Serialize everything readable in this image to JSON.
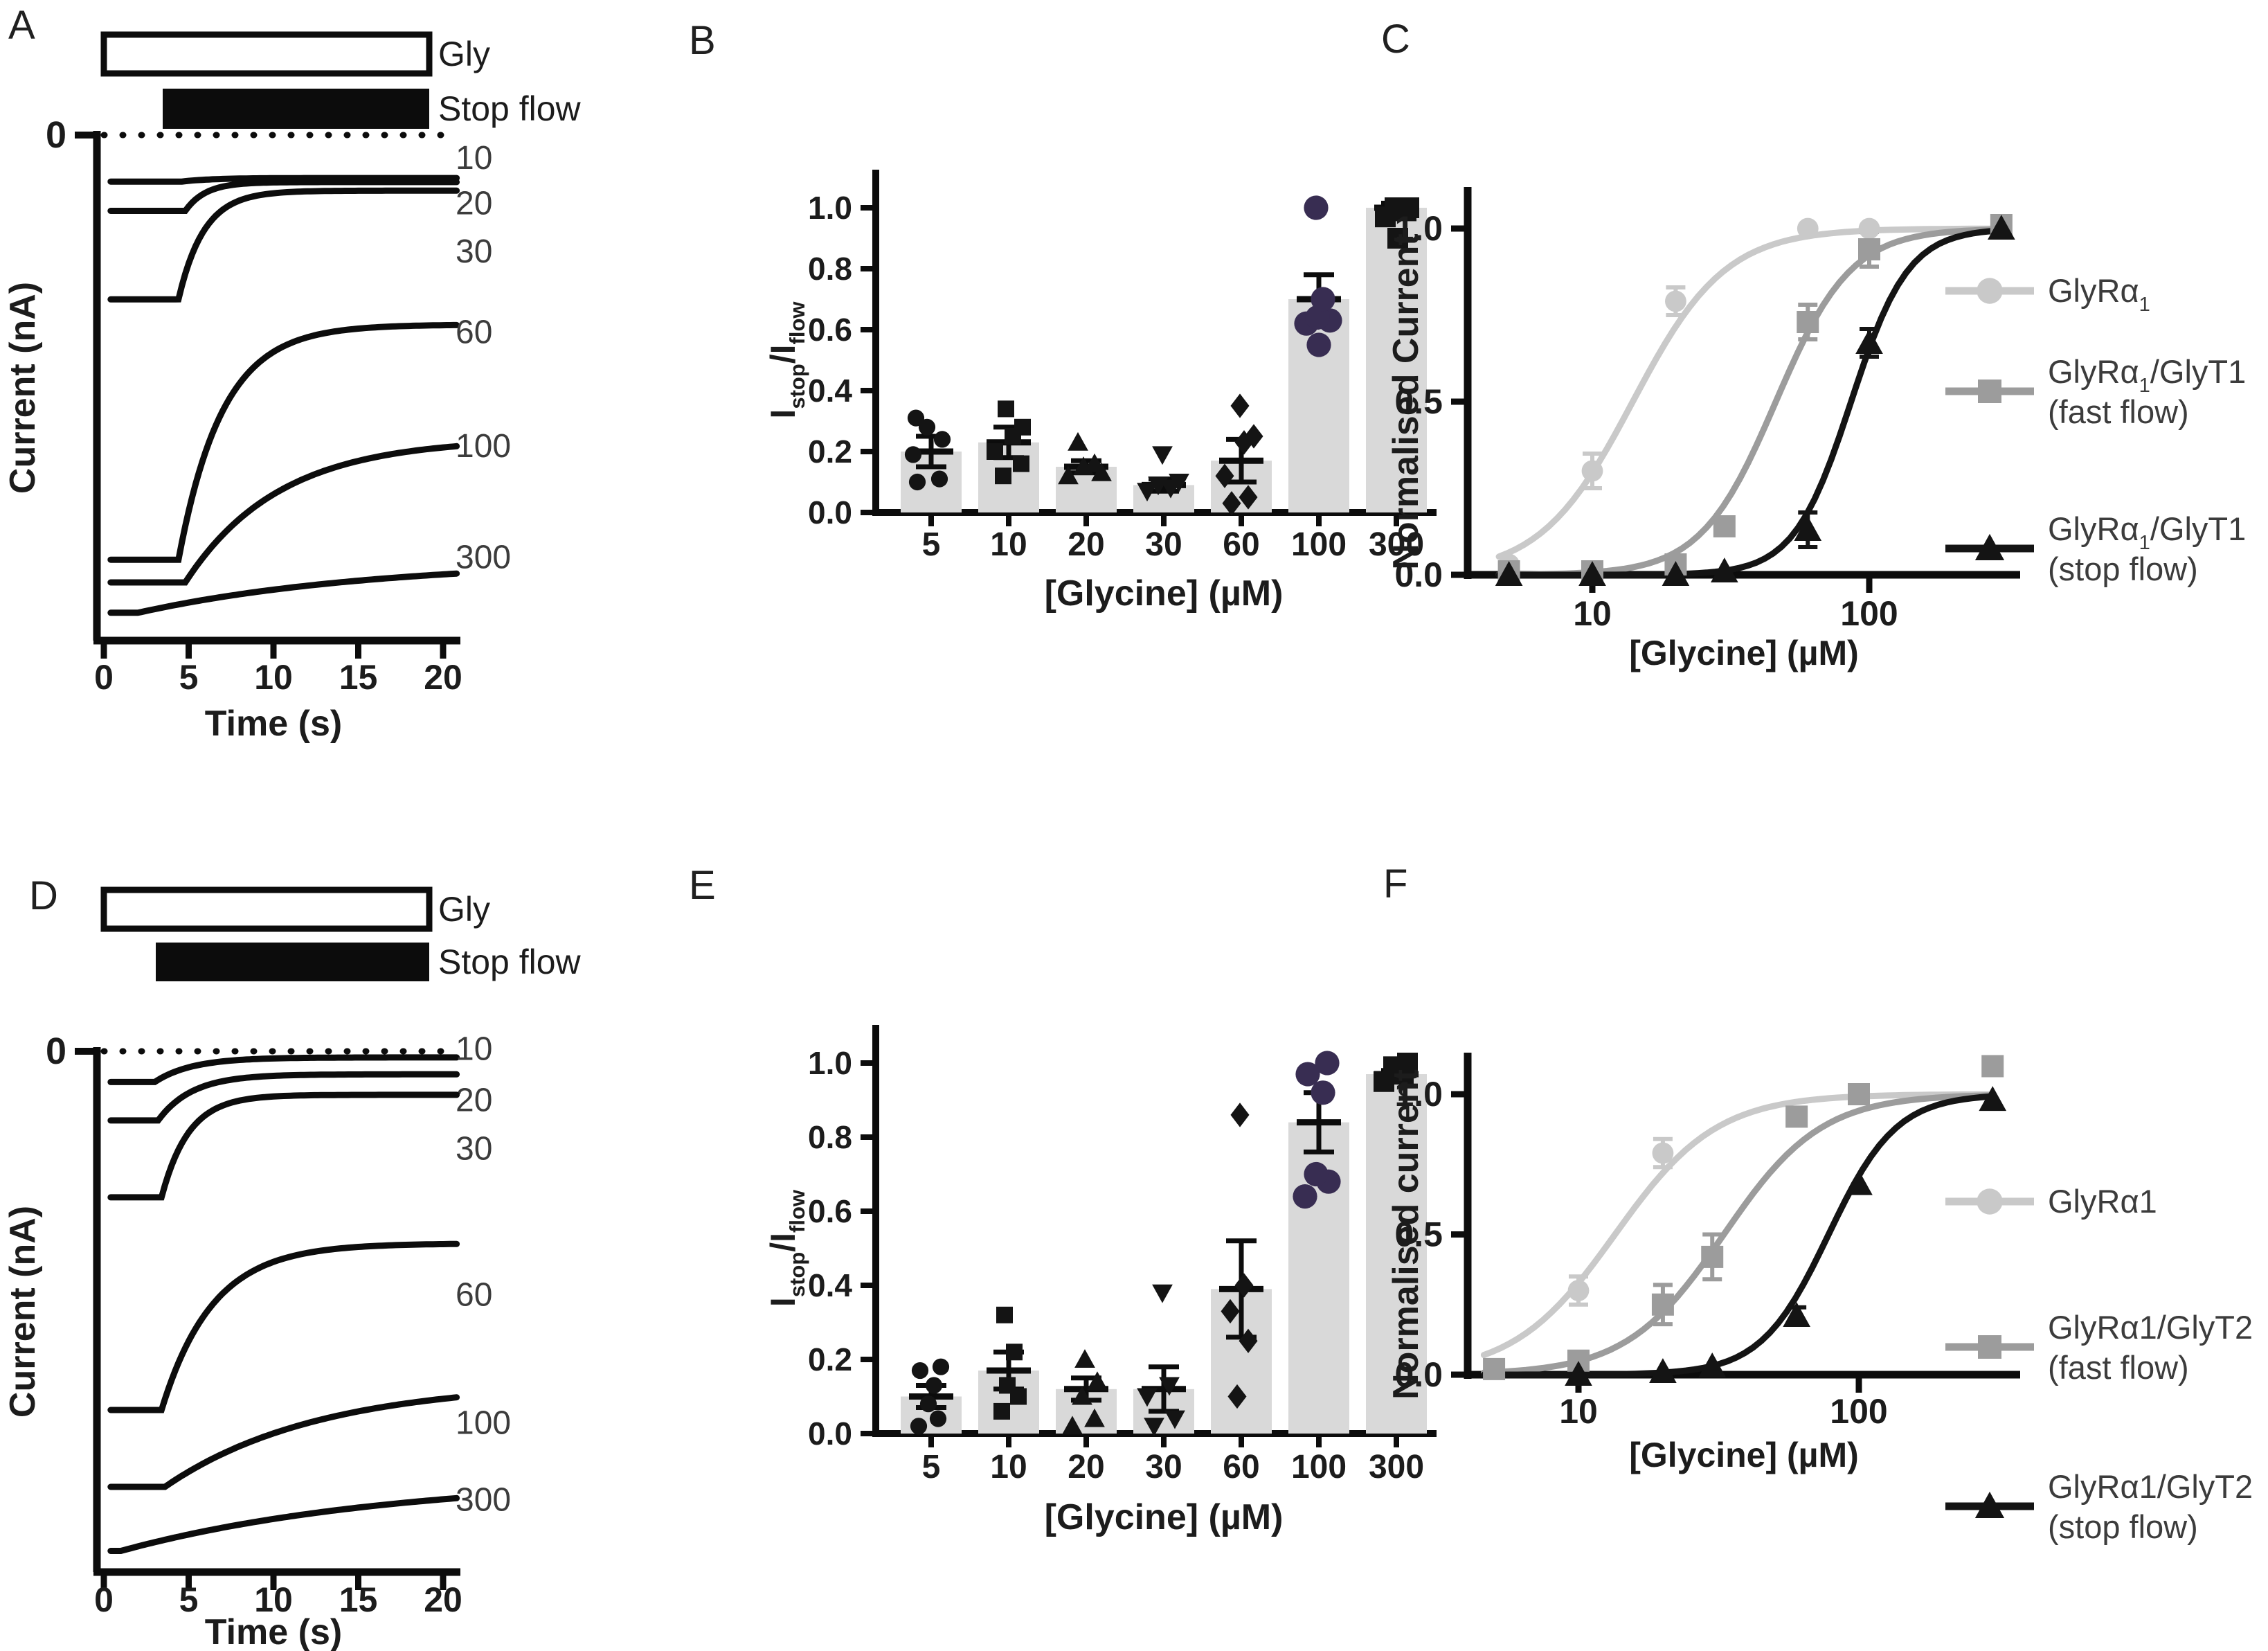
{
  "colors": {
    "ink": "#0c0c0c",
    "text": "#1c1c1c",
    "label_gray": "#3c3c3c",
    "bar_fill": "#d9d9d9",
    "marker_dark": "#141414",
    "marker_purple": "#382d52",
    "series_light": "#c9c9c9",
    "series_mid": "#9c9c9c",
    "series_dark": "#141414"
  },
  "chart_data": [
    {
      "panel_label": "A",
      "type": "line",
      "subtype": "current-traces",
      "stim_bars": [
        {
          "label": "Gly",
          "style": "open"
        },
        {
          "label": "Stop flow",
          "style": "filled"
        }
      ],
      "zero_tick_label": "0",
      "ylabel": "Current (nA)",
      "xlabel": "Time (s)",
      "x_ticks": [
        0,
        5,
        10,
        15,
        20
      ],
      "xlim": [
        0,
        21
      ],
      "trace_conc_unit": "µM glycine",
      "traces": [
        {
          "conc": "10",
          "base": 0.092,
          "final": 0.085,
          "t0": 4.6,
          "tau": 1.8,
          "label_f": 0.045
        },
        {
          "conc": "20",
          "base": 0.15,
          "final": 0.093,
          "t0": 4.8,
          "tau": 1.2,
          "label_f": 0.135
        },
        {
          "conc": "30",
          "base": 0.325,
          "final": 0.11,
          "t0": 4.4,
          "tau": 1.5,
          "label_f": 0.23
        },
        {
          "conc": "60",
          "base": 0.84,
          "final": 0.375,
          "t0": 4.4,
          "tau": 2.6,
          "label_f": 0.39
        },
        {
          "conc": "100",
          "base": 0.885,
          "final": 0.6,
          "t0": 4.8,
          "tau": 5.5,
          "label_f": 0.615
        },
        {
          "conc": "300",
          "base": 0.945,
          "final": 0.84,
          "t0": 2.0,
          "tau": 14.0,
          "label_f": 0.835
        }
      ]
    },
    {
      "panel_label": "B",
      "type": "bar",
      "ylabel_parts": [
        {
          "t": "I"
        },
        {
          "t": "stop",
          "sub": true
        },
        {
          "t": "/I"
        },
        {
          "t": "flow",
          "sub": true
        }
      ],
      "xlabel": "[Glycine] (µM)",
      "y_ticks": [
        "0.0",
        "0.2",
        "0.4",
        "0.6",
        "0.8",
        "1.0"
      ],
      "ylim": [
        0,
        1.1
      ],
      "categories": [
        "5",
        "10",
        "20",
        "30",
        "60",
        "100",
        "300"
      ],
      "values": [
        0.2,
        0.23,
        0.15,
        0.09,
        0.17,
        0.7,
        1.0
      ],
      "errors": [
        0.05,
        0.05,
        0.02,
        0.02,
        0.07,
        0.08,
        0.015
      ],
      "scatter": [
        {
          "marker": "circle",
          "color": "#141414",
          "size": 22,
          "values": [
            0.1,
            0.11,
            0.19,
            0.24,
            0.28,
            0.31
          ],
          "dx": [
            -20,
            12,
            -26,
            16,
            -6,
            -22
          ]
        },
        {
          "marker": "square",
          "color": "#141414",
          "size": 24,
          "values": [
            0.12,
            0.16,
            0.2,
            0.25,
            0.28,
            0.34
          ],
          "dx": [
            -8,
            18,
            -20,
            6,
            20,
            -4
          ]
        },
        {
          "marker": "triangle",
          "color": "#141414",
          "size": 24,
          "values": [
            0.12,
            0.13,
            0.15,
            0.16,
            0.23
          ],
          "dx": [
            -26,
            22,
            -4,
            12,
            -12
          ]
        },
        {
          "marker": "triangle-down",
          "color": "#141414",
          "size": 24,
          "values": [
            0.07,
            0.08,
            0.09,
            0.1,
            0.19
          ],
          "dx": [
            -24,
            10,
            -8,
            22,
            -2
          ]
        },
        {
          "marker": "diamond",
          "color": "#141414",
          "size": 26,
          "values": [
            0.03,
            0.05,
            0.12,
            0.23,
            0.25,
            0.35
          ],
          "dx": [
            -14,
            10,
            -24,
            4,
            18,
            -2
          ]
        },
        {
          "marker": "circle",
          "color": "#382d52",
          "size": 32,
          "values": [
            0.55,
            0.62,
            0.63,
            0.64,
            0.7,
            1.0
          ],
          "dx": [
            0,
            -18,
            16,
            -2,
            6,
            -4
          ]
        },
        {
          "marker": "square",
          "color": "#141414",
          "size": 30,
          "values": [
            0.9,
            0.97,
            0.99,
            1.0,
            1.0
          ],
          "dx": [
            2,
            -16,
            14,
            -2,
            18
          ]
        }
      ]
    },
    {
      "panel_label": "C",
      "type": "line",
      "subtype": "dose-response",
      "xscale": "log",
      "ylabel": "Normalised Current",
      "xlabel": "[Glycine] (µM)",
      "y_ticks": [
        "0.0",
        "0.5",
        "1.0"
      ],
      "x_ticks": [
        "10",
        "100"
      ],
      "series": [
        {
          "name_parts": [
            {
              "t": "GlyRα"
            },
            {
              "t": "1",
              "sub": true
            }
          ],
          "name_line2": "",
          "color": "#c9c9c9",
          "marker": "circle",
          "ec50": 14,
          "hill": 2.6,
          "top": 1.0,
          "points": [
            {
              "x": 5,
              "y": 0.03
            },
            {
              "x": 10,
              "y": 0.3,
              "err": 0.05
            },
            {
              "x": 20,
              "y": 0.79,
              "err": 0.04
            },
            {
              "x": 60,
              "y": 1.0
            },
            {
              "x": 100,
              "y": 1.0
            }
          ]
        },
        {
          "name_parts": [
            {
              "t": "GlyRα"
            },
            {
              "t": "1",
              "sub": true
            },
            {
              "t": "/GlyT1"
            }
          ],
          "name_line2": "(fast flow)",
          "color": "#9c9c9c",
          "marker": "square",
          "ec50": 46,
          "hill": 3.2,
          "top": 1.0,
          "points": [
            {
              "x": 5,
              "y": 0.01
            },
            {
              "x": 10,
              "y": 0.01
            },
            {
              "x": 20,
              "y": 0.03
            },
            {
              "x": 30,
              "y": 0.14
            },
            {
              "x": 60,
              "y": 0.73,
              "err": 0.05
            },
            {
              "x": 100,
              "y": 0.94,
              "err": 0.05
            },
            {
              "x": 300,
              "y": 1.01
            }
          ]
        },
        {
          "name_parts": [
            {
              "t": "GlyRα"
            },
            {
              "t": "1",
              "sub": true
            },
            {
              "t": "/GlyT1"
            }
          ],
          "name_line2": "(stop flow)",
          "color": "#141414",
          "marker": "triangle",
          "ec50": 86,
          "hill": 4.2,
          "top": 1.0,
          "points": [
            {
              "x": 5,
              "y": 0.0
            },
            {
              "x": 10,
              "y": 0.0
            },
            {
              "x": 20,
              "y": 0.0
            },
            {
              "x": 30,
              "y": 0.01
            },
            {
              "x": 60,
              "y": 0.13,
              "err": 0.05
            },
            {
              "x": 100,
              "y": 0.67,
              "err": 0.04
            },
            {
              "x": 300,
              "y": 1.0
            }
          ]
        }
      ]
    },
    {
      "panel_label": "D",
      "type": "line",
      "subtype": "current-traces",
      "stim_bars": [
        {
          "label": "Gly",
          "style": "open"
        },
        {
          "label": "Stop flow",
          "style": "filled"
        }
      ],
      "zero_tick_label": "0",
      "ylabel": "Current (nA)",
      "xlabel": "Time (s)",
      "x_ticks": [
        0,
        5,
        10,
        15,
        20
      ],
      "xlim": [
        0,
        21
      ],
      "trace_conc_unit": "µM glycine",
      "traces": [
        {
          "conc": "10",
          "base": 0.06,
          "final": 0.012,
          "t0": 3.0,
          "tau": 2.2,
          "label_f": -0.005
        },
        {
          "conc": "20",
          "base": 0.135,
          "final": 0.045,
          "t0": 3.2,
          "tau": 2.0,
          "label_f": 0.095
        },
        {
          "conc": "30",
          "base": 0.285,
          "final": 0.085,
          "t0": 3.4,
          "tau": 1.6,
          "label_f": 0.19
        },
        {
          "conc": "60",
          "base": 0.7,
          "final": 0.375,
          "t0": 3.4,
          "tau": 3.0,
          "label_f": 0.475
        },
        {
          "conc": "100",
          "base": 0.85,
          "final": 0.645,
          "t0": 3.6,
          "tau": 9.0,
          "label_f": 0.725
        },
        {
          "conc": "300",
          "base": 0.975,
          "final": 0.83,
          "t0": 1.0,
          "tau": 16.0,
          "label_f": 0.875
        }
      ]
    },
    {
      "panel_label": "E",
      "type": "bar",
      "ylabel_parts": [
        {
          "t": "I"
        },
        {
          "t": "stop",
          "sub": true
        },
        {
          "t": "/I"
        },
        {
          "t": "flow",
          "sub": true
        }
      ],
      "xlabel": "[Glycine] (µM)",
      "y_ticks": [
        "0.0",
        "0.2",
        "0.4",
        "0.6",
        "0.8",
        "1.0"
      ],
      "ylim": [
        0,
        1.1
      ],
      "categories": [
        "5",
        "10",
        "20",
        "30",
        "60",
        "100",
        "300"
      ],
      "values": [
        0.1,
        0.17,
        0.12,
        0.12,
        0.39,
        0.84,
        0.97
      ],
      "errors": [
        0.03,
        0.05,
        0.03,
        0.06,
        0.13,
        0.08,
        0.01
      ],
      "scatter": [
        {
          "marker": "circle",
          "color": "#141414",
          "size": 22,
          "values": [
            0.02,
            0.04,
            0.08,
            0.13,
            0.17,
            0.18
          ],
          "dx": [
            -18,
            10,
            -4,
            4,
            -16,
            14
          ]
        },
        {
          "marker": "square",
          "color": "#141414",
          "size": 24,
          "values": [
            0.06,
            0.1,
            0.13,
            0.22,
            0.32
          ],
          "dx": [
            -10,
            14,
            -2,
            8,
            -6
          ]
        },
        {
          "marker": "triangle",
          "color": "#141414",
          "size": 24,
          "values": [
            0.02,
            0.04,
            0.1,
            0.14,
            0.2
          ],
          "dx": [
            -20,
            12,
            -6,
            16,
            -2
          ]
        },
        {
          "marker": "triangle-down",
          "color": "#141414",
          "size": 24,
          "values": [
            0.02,
            0.04,
            0.1,
            0.13,
            0.38
          ],
          "dx": [
            -14,
            16,
            -24,
            8,
            -2
          ]
        },
        {
          "marker": "diamond",
          "color": "#141414",
          "size": 26,
          "values": [
            0.1,
            0.25,
            0.33,
            0.4,
            0.86
          ],
          "dx": [
            -6,
            10,
            -16,
            4,
            -2
          ]
        },
        {
          "marker": "circle",
          "color": "#382d52",
          "size": 32,
          "values": [
            0.64,
            0.68,
            0.7,
            0.92,
            0.97,
            1.0
          ],
          "dx": [
            -20,
            14,
            -4,
            6,
            -16,
            12
          ]
        },
        {
          "marker": "square",
          "color": "#141414",
          "size": 30,
          "values": [
            0.95,
            0.97,
            0.99,
            1.0
          ],
          "dx": [
            -18,
            10,
            -4,
            16
          ]
        }
      ]
    },
    {
      "panel_label": "F",
      "type": "line",
      "subtype": "dose-response",
      "xscale": "log",
      "ylabel": "Normalised current",
      "xlabel": "[Glycine] (µM)",
      "y_ticks": [
        "0.0",
        "0.5",
        "1.0"
      ],
      "x_ticks": [
        "10",
        "100"
      ],
      "series": [
        {
          "name_parts": [
            {
              "t": "GlyRα1"
            }
          ],
          "name_line2": "",
          "color": "#c9c9c9",
          "marker": "circle",
          "ec50": 13.5,
          "hill": 2.4,
          "top": 1.0,
          "points": [
            {
              "x": 5,
              "y": 0.02
            },
            {
              "x": 10,
              "y": 0.3,
              "err": 0.05
            },
            {
              "x": 20,
              "y": 0.79,
              "err": 0.05
            }
          ]
        },
        {
          "name_parts": [
            {
              "t": "GlyRα1/GlyT2"
            }
          ],
          "name_line2": "(fast flow)",
          "color": "#9c9c9c",
          "marker": "square",
          "ec50": 33,
          "hill": 2.5,
          "top": 1.0,
          "points": [
            {
              "x": 5,
              "y": 0.02
            },
            {
              "x": 10,
              "y": 0.05
            },
            {
              "x": 20,
              "y": 0.25,
              "err": 0.07
            },
            {
              "x": 30,
              "y": 0.42,
              "err": 0.08
            },
            {
              "x": 60,
              "y": 0.92
            },
            {
              "x": 100,
              "y": 1.0
            },
            {
              "x": 300,
              "y": 1.1
            }
          ]
        },
        {
          "name_parts": [
            {
              "t": "GlyRα1/GlyT2"
            }
          ],
          "name_line2": "(stop flow)",
          "color": "#141414",
          "marker": "triangle",
          "ec50": 78,
          "hill": 3.6,
          "top": 1.0,
          "points": [
            {
              "x": 10,
              "y": 0.0
            },
            {
              "x": 20,
              "y": 0.01
            },
            {
              "x": 30,
              "y": 0.03
            },
            {
              "x": 60,
              "y": 0.21,
              "err": 0.03
            },
            {
              "x": 100,
              "y": 0.68
            },
            {
              "x": 300,
              "y": 0.98
            }
          ]
        }
      ]
    }
  ]
}
